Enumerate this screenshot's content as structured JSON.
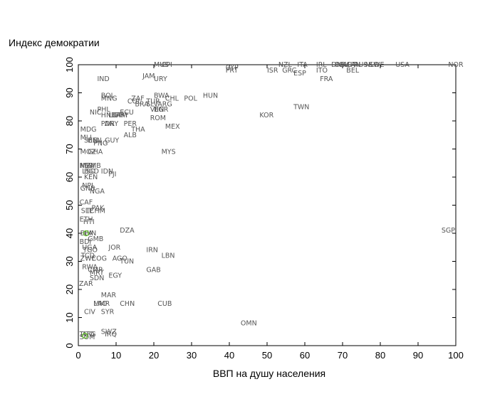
{
  "chart_data": {
    "type": "scatter",
    "xlabel": "ВВП на  душу населения",
    "ylabel": "Индекс демократии",
    "xlim": [
      0,
      100
    ],
    "ylim": [
      0,
      100
    ],
    "xticks": [
      0,
      10,
      20,
      30,
      40,
      50,
      60,
      70,
      80,
      90,
      100
    ],
    "yticks": [
      0,
      10,
      20,
      30,
      40,
      50,
      60,
      70,
      80,
      90,
      100
    ],
    "grid": false,
    "marker": "country-code-text",
    "highlight_color": "#6cbf3a",
    "highlights": [
      {
        "x": 1.3,
        "y": 40
      },
      {
        "x": 1.0,
        "y": 3.5
      }
    ],
    "points": [
      {
        "label": "NOR",
        "x": 100,
        "y": 100
      },
      {
        "label": "USA",
        "x": 84,
        "y": 100
      },
      {
        "label": "SWE",
        "x": 77,
        "y": 100
      },
      {
        "label": "NLD",
        "x": 76,
        "y": 100
      },
      {
        "label": "AUS",
        "x": 73,
        "y": 100
      },
      {
        "label": "CAN",
        "x": 71,
        "y": 100
      },
      {
        "label": "AUT",
        "x": 70,
        "y": 100
      },
      {
        "label": "DEU",
        "x": 68,
        "y": 100
      },
      {
        "label": "DNK",
        "x": 67,
        "y": 100
      },
      {
        "label": "IRL",
        "x": 63,
        "y": 100
      },
      {
        "label": "ITA",
        "x": 58,
        "y": 100
      },
      {
        "label": "NZL",
        "x": 53,
        "y": 100
      },
      {
        "label": "CYP",
        "x": 39,
        "y": 99
      },
      {
        "label": "MUS",
        "x": 20,
        "y": 100
      },
      {
        "label": "CPI",
        "x": 22,
        "y": 100
      },
      {
        "label": "ITO",
        "x": 63,
        "y": 98
      },
      {
        "label": "BEL",
        "x": 71,
        "y": 98
      },
      {
        "label": "ISR",
        "x": 50,
        "y": 98
      },
      {
        "label": "GRC",
        "x": 54,
        "y": 98
      },
      {
        "label": "PRT",
        "x": 39,
        "y": 98
      },
      {
        "label": "ESP",
        "x": 57,
        "y": 97
      },
      {
        "label": "FRA",
        "x": 64,
        "y": 95
      },
      {
        "label": "JAM",
        "x": 17,
        "y": 96
      },
      {
        "label": "URY",
        "x": 20,
        "y": 95
      },
      {
        "label": "IND",
        "x": 5,
        "y": 95
      },
      {
        "label": "HUN",
        "x": 33,
        "y": 89
      },
      {
        "label": "POL",
        "x": 28,
        "y": 88
      },
      {
        "label": "BOL",
        "x": 6,
        "y": 89
      },
      {
        "label": "MNG",
        "x": 6,
        "y": 88
      },
      {
        "label": "ZAF",
        "x": 14,
        "y": 88
      },
      {
        "label": "BWA",
        "x": 20,
        "y": 89
      },
      {
        "label": "CHL",
        "x": 23,
        "y": 88
      },
      {
        "label": "COL",
        "x": 13,
        "y": 87
      },
      {
        "label": "BRA",
        "x": 15,
        "y": 86
      },
      {
        "label": "TUR",
        "x": 18,
        "y": 87
      },
      {
        "label": "SLV",
        "x": 18,
        "y": 86
      },
      {
        "label": "ARG",
        "x": 21,
        "y": 86
      },
      {
        "label": "VEN",
        "x": 19,
        "y": 84
      },
      {
        "label": "BGR",
        "x": 20,
        "y": 84
      },
      {
        "label": "TWN",
        "x": 57,
        "y": 85
      },
      {
        "label": "KOR",
        "x": 48,
        "y": 82
      },
      {
        "label": "PHL",
        "x": 5,
        "y": 84
      },
      {
        "label": "NIC",
        "x": 3,
        "y": 83
      },
      {
        "label": "ECU",
        "x": 11,
        "y": 83
      },
      {
        "label": "HND",
        "x": 6,
        "y": 82
      },
      {
        "label": "LKA",
        "x": 8,
        "y": 82
      },
      {
        "label": "GTM",
        "x": 9,
        "y": 82
      },
      {
        "label": "PRY",
        "x": 10,
        "y": 82
      },
      {
        "label": "ROM",
        "x": 19,
        "y": 81
      },
      {
        "label": "PAN",
        "x": 6,
        "y": 79
      },
      {
        "label": "DRY",
        "x": 7,
        "y": 79
      },
      {
        "label": "PER",
        "x": 12,
        "y": 79
      },
      {
        "label": "MEX",
        "x": 23,
        "y": 78
      },
      {
        "label": "THA",
        "x": 14,
        "y": 77
      },
      {
        "label": "MDG",
        "x": 0.5,
        "y": 77
      },
      {
        "label": "ALB",
        "x": 12,
        "y": 75
      },
      {
        "label": "MLI",
        "x": 0.5,
        "y": 74
      },
      {
        "label": "SEN",
        "x": 1.5,
        "y": 73
      },
      {
        "label": "BEN",
        "x": 2.5,
        "y": 73
      },
      {
        "label": "GUY",
        "x": 7,
        "y": 73
      },
      {
        "label": "PNG",
        "x": 4,
        "y": 72
      },
      {
        "label": "MYS",
        "x": 22,
        "y": 69
      },
      {
        "label": "MOZ",
        "x": 0.5,
        "y": 69
      },
      {
        "label": "GHA",
        "x": 2.5,
        "y": 69
      },
      {
        "label": "NER",
        "x": 0.3,
        "y": 64
      },
      {
        "label": "MWI",
        "x": 0.5,
        "y": 64
      },
      {
        "label": "ZMB",
        "x": 2,
        "y": 64
      },
      {
        "label": "LSO",
        "x": 1,
        "y": 62
      },
      {
        "label": "BGD",
        "x": 1.5,
        "y": 62
      },
      {
        "label": "IDN",
        "x": 6,
        "y": 62
      },
      {
        "label": "FJI",
        "x": 8,
        "y": 61
      },
      {
        "label": "KEN",
        "x": 1.5,
        "y": 60
      },
      {
        "label": "NPL",
        "x": 1,
        "y": 57
      },
      {
        "label": "GNB",
        "x": 0.5,
        "y": 56
      },
      {
        "label": "NGA",
        "x": 3,
        "y": 55
      },
      {
        "label": "CAF",
        "x": 0.3,
        "y": 51
      },
      {
        "label": "PAK",
        "x": 3.5,
        "y": 49
      },
      {
        "label": "SLE",
        "x": 0.7,
        "y": 48
      },
      {
        "label": "TCHM",
        "x": 2,
        "y": 48
      },
      {
        "label": "ETH",
        "x": 0.3,
        "y": 45
      },
      {
        "label": "HTI",
        "x": 1.3,
        "y": 44
      },
      {
        "label": "DZA",
        "x": 11,
        "y": 41
      },
      {
        "label": "SGP",
        "x": 98,
        "y": 41
      },
      {
        "label": "BFA",
        "x": 0.5,
        "y": 40
      },
      {
        "label": "GIN",
        "x": 1.5,
        "y": 40
      },
      {
        "label": "GMB",
        "x": 2.5,
        "y": 38
      },
      {
        "label": "BDI",
        "x": 0.3,
        "y": 37
      },
      {
        "label": "UGA",
        "x": 1,
        "y": 35
      },
      {
        "label": "TGO",
        "x": 1.2,
        "y": 34
      },
      {
        "label": "JOR",
        "x": 8,
        "y": 35
      },
      {
        "label": "IRN",
        "x": 18,
        "y": 34
      },
      {
        "label": "LBN",
        "x": 22,
        "y": 32
      },
      {
        "label": "ZWE",
        "x": 0.5,
        "y": 31
      },
      {
        "label": "TCD",
        "x": 0.7,
        "y": 32
      },
      {
        "label": "COG",
        "x": 3.5,
        "y": 31
      },
      {
        "label": "AGO",
        "x": 9,
        "y": 31
      },
      {
        "label": "TUN",
        "x": 11,
        "y": 30
      },
      {
        "label": "RWA",
        "x": 1,
        "y": 28
      },
      {
        "label": "CMR",
        "x": 2.5,
        "y": 27
      },
      {
        "label": "MRT",
        "x": 3,
        "y": 26
      },
      {
        "label": "GAB",
        "x": 18,
        "y": 27
      },
      {
        "label": "EGY",
        "x": 8,
        "y": 25
      },
      {
        "label": "SDN",
        "x": 3,
        "y": 24
      },
      {
        "label": "ZAR",
        "x": 0,
        "y": 22
      },
      {
        "label": "MAR",
        "x": 6,
        "y": 18
      },
      {
        "label": "MMR",
        "x": 4,
        "y": 15
      },
      {
        "label": "LAO",
        "x": 4,
        "y": 15
      },
      {
        "label": "CHN",
        "x": 11,
        "y": 15
      },
      {
        "label": "CUB",
        "x": 21,
        "y": 15
      },
      {
        "label": "SYR",
        "x": 6,
        "y": 12
      },
      {
        "label": "CIV",
        "x": 1.5,
        "y": 12
      },
      {
        "label": "OMN",
        "x": 43,
        "y": 8
      },
      {
        "label": "SWZ",
        "x": 6,
        "y": 5
      },
      {
        "label": "AFG",
        "x": 1,
        "y": 4
      },
      {
        "label": "TGO",
        "x": 0.3,
        "y": 4
      },
      {
        "label": "SOM",
        "x": 0.3,
        "y": 3
      },
      {
        "label": "IRQ",
        "x": 7,
        "y": 4
      }
    ]
  }
}
